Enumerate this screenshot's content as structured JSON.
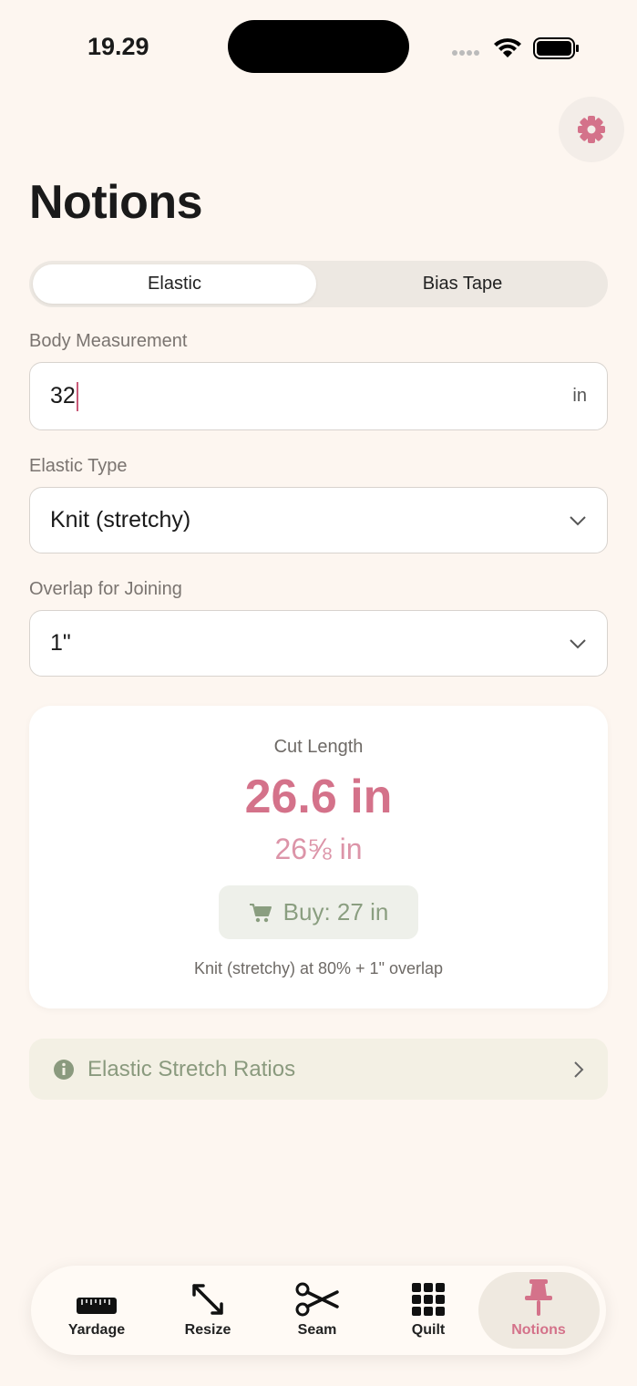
{
  "status_bar": {
    "time": "19.29"
  },
  "header": {
    "title": "Notions"
  },
  "tabs": [
    "Elastic",
    "Bias Tape"
  ],
  "form": {
    "body_measurement": {
      "label": "Body Measurement",
      "value": "32",
      "unit": "in"
    },
    "elastic_type": {
      "label": "Elastic Type",
      "value": "Knit (stretchy)"
    },
    "overlap": {
      "label": "Overlap for Joining",
      "value": "1\""
    }
  },
  "result": {
    "label": "Cut Length",
    "value": "26.6 in",
    "fraction": "26⅝ in",
    "buy": "Buy: 27 in",
    "note": "Knit (stretchy) at 80% + 1\" overlap"
  },
  "info": {
    "title": "Elastic Stretch Ratios"
  },
  "tab_bar": [
    "Yardage",
    "Resize",
    "Seam",
    "Quilt",
    "Notions"
  ]
}
